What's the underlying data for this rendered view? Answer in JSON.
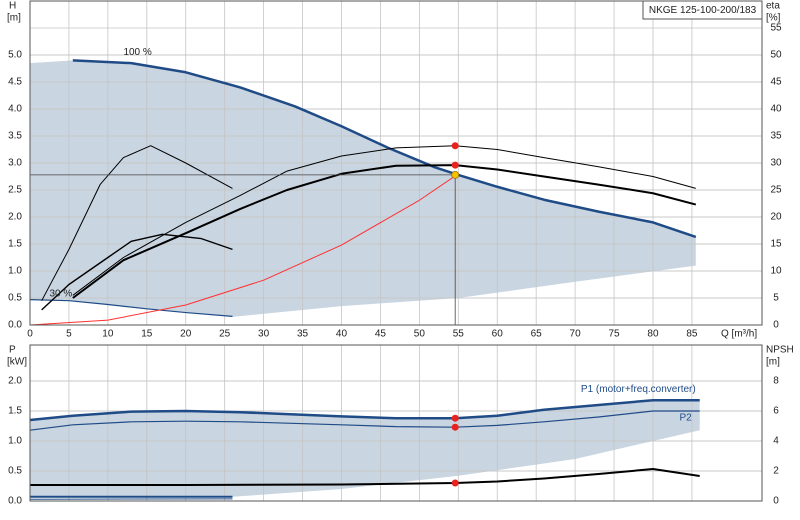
{
  "chart_data": [
    {
      "type": "line",
      "title": "NKGE 125-100-200/183",
      "ylabel": "H",
      "yunit": "[m]",
      "y2label": "eta",
      "y2unit": "[%]",
      "xlabel": "Q [m³/h]",
      "xlim": [
        0,
        94
      ],
      "ylim": [
        0,
        6
      ],
      "y2lim": [
        0,
        60
      ],
      "grid": true,
      "xtick_labels": true,
      "xticks": [
        0,
        5,
        10,
        15,
        20,
        25,
        30,
        35,
        40,
        45,
        50,
        55,
        60,
        65,
        70,
        75,
        80,
        85
      ],
      "yticks": [
        {
          "value": 0,
          "label": "0.0"
        },
        0.5,
        {
          "value": 1,
          "label": "1.0"
        },
        1.5,
        {
          "value": 2,
          "label": "2.0"
        },
        2.5,
        {
          "value": 3,
          "label": "3.0"
        },
        3.5,
        {
          "value": 4,
          "label": "4.0"
        },
        4.5,
        {
          "value": 5,
          "label": "5.0"
        }
      ],
      "y2ticks": [
        0,
        5,
        10,
        15,
        20,
        25,
        30,
        35,
        40,
        45,
        50,
        55
      ],
      "annotations": [
        "100 %",
        "30 %"
      ],
      "series": [
        {
          "kind": "area",
          "color": "#c9d5e1",
          "x": [
            0,
            5.5,
            13,
            20,
            27,
            34,
            40,
            46,
            52,
            55,
            60,
            66,
            73,
            80,
            85.5,
            85.5,
            70,
            55,
            40,
            26,
            20,
            15,
            10,
            5,
            0
          ],
          "values": [
            4.85,
            4.9,
            4.85,
            4.68,
            4.4,
            4.05,
            3.68,
            3.28,
            2.92,
            2.78,
            2.56,
            2.32,
            2.1,
            1.9,
            1.63,
            1.1,
            0.8,
            0.5,
            0.35,
            0.15,
            0.23,
            0.3,
            0.38,
            0.45,
            0.47
          ]
        },
        {
          "color": "#1f4b87",
          "width": 2.5,
          "x": [
            5.5,
            13,
            20,
            27,
            34,
            40,
            46,
            52,
            55,
            60,
            66,
            73,
            80,
            85.5
          ],
          "values": [
            4.9,
            4.85,
            4.68,
            4.4,
            4.05,
            3.68,
            3.28,
            2.92,
            2.78,
            2.56,
            2.32,
            2.1,
            1.9,
            1.63
          ]
        },
        {
          "color": "#1f4b87",
          "width": 1.2,
          "x": [
            0,
            5,
            10,
            15,
            20,
            26
          ],
          "values": [
            0.47,
            0.45,
            0.38,
            0.3,
            0.23,
            0.16
          ]
        },
        {
          "color": "#000000",
          "width": 1,
          "axis": "y2",
          "x": [
            5.5,
            12,
            20,
            27,
            33,
            40,
            47,
            54.6,
            60,
            66,
            73,
            80,
            85.5
          ],
          "values": [
            5.5,
            12.5,
            19,
            24,
            28.5,
            31.3,
            32.8,
            33.2,
            32.5,
            31,
            29.3,
            27.5,
            25.3
          ]
        },
        {
          "color": "#000000",
          "width": 2,
          "axis": "y2",
          "x": [
            5.5,
            12,
            20,
            27,
            33,
            40,
            47,
            54.6,
            60,
            66,
            73,
            80,
            85.5
          ],
          "values": [
            5,
            12,
            17,
            21.5,
            25,
            28,
            29.5,
            29.6,
            28.8,
            27.5,
            26,
            24.4,
            22.3
          ]
        },
        {
          "color": "#000000",
          "width": 1,
          "axis": "y2",
          "x": [
            1.5,
            5,
            9,
            12,
            15.5,
            20,
            26
          ],
          "values": [
            4.5,
            14,
            26,
            31,
            33.2,
            30,
            25.3
          ]
        },
        {
          "color": "#000000",
          "width": 1.4,
          "axis": "y2",
          "x": [
            1.5,
            5,
            10,
            13,
            17,
            22,
            26
          ],
          "values": [
            2.8,
            7.5,
            12.5,
            15.5,
            16.8,
            16,
            14
          ]
        },
        {
          "color": "#ff3030",
          "width": 1,
          "x": [
            0,
            10,
            20,
            30,
            40,
            50,
            54.6
          ],
          "values": [
            0,
            0.09,
            0.37,
            0.83,
            1.48,
            2.31,
            2.76
          ]
        },
        {
          "kind": "marker",
          "color": "#e8231f",
          "axis": "y2",
          "x": [
            54.6,
            54.6
          ],
          "values": [
            33.2,
            29.6
          ]
        },
        {
          "kind": "marker",
          "color": "#f5c400",
          "crosshair": true,
          "x": [
            54.6
          ],
          "values": [
            2.78
          ]
        }
      ]
    },
    {
      "type": "line",
      "ylabel": "P",
      "yunit": "[kW]",
      "y2label": "NPSH",
      "y2unit": "[m]",
      "xlim": [
        0,
        94
      ],
      "ylim": [
        0,
        2.6
      ],
      "y2lim": [
        0,
        10.4
      ],
      "grid": true,
      "xtick_labels": false,
      "xticks": [
        0,
        5,
        10,
        15,
        20,
        25,
        30,
        35,
        40,
        45,
        50,
        55,
        60,
        65,
        70,
        75,
        80,
        85
      ],
      "yticks": [
        {
          "value": 0,
          "label": "0.0"
        },
        0.5,
        {
          "value": 1,
          "label": "1.0"
        },
        1.5,
        {
          "value": 2,
          "label": "2.0"
        }
      ],
      "y2ticks": [
        0,
        2,
        4,
        6,
        8
      ],
      "series": [
        {
          "kind": "area",
          "color": "#c9d5e1",
          "x": [
            0,
            5.5,
            13,
            20,
            27,
            40,
            47,
            54.6,
            60,
            66,
            73,
            80,
            86,
            86,
            70,
            55,
            40,
            26,
            0
          ],
          "values": [
            1.35,
            1.42,
            1.49,
            1.5,
            1.48,
            1.41,
            1.38,
            1.38,
            1.42,
            1.52,
            1.6,
            1.68,
            1.68,
            1.18,
            0.7,
            0.42,
            0.2,
            0.07,
            0.07
          ]
        },
        {
          "name": "P1 (motor+freq.converter)",
          "color": "#1f4b87",
          "width": 2.5,
          "x": [
            0,
            5.5,
            13,
            20,
            27,
            40,
            47,
            54.6,
            60,
            66,
            73,
            80,
            86
          ],
          "values": [
            1.35,
            1.42,
            1.49,
            1.5,
            1.48,
            1.41,
            1.38,
            1.38,
            1.42,
            1.52,
            1.6,
            1.68,
            1.68
          ]
        },
        {
          "name": "P2",
          "color": "#1f4b87",
          "width": 1.2,
          "x": [
            0,
            5.5,
            13,
            20,
            27,
            40,
            47,
            54.6,
            60,
            66,
            73,
            80,
            86
          ],
          "values": [
            1.18,
            1.27,
            1.32,
            1.33,
            1.32,
            1.27,
            1.24,
            1.23,
            1.26,
            1.32,
            1.4,
            1.5,
            1.5
          ]
        },
        {
          "color": "#000000",
          "width": 2,
          "axis": "y2",
          "x": [
            0,
            5.5,
            20,
            40,
            54.6,
            60,
            66,
            73,
            80,
            86
          ],
          "values": [
            1.07,
            1.07,
            1.07,
            1.1,
            1.2,
            1.3,
            1.5,
            1.8,
            2.13,
            1.67
          ]
        },
        {
          "color": "#1f4b87",
          "width": 2,
          "x": [
            0,
            26
          ],
          "values": [
            0.07,
            0.07
          ]
        },
        {
          "color": "#1f4b87",
          "width": 1,
          "x": [
            0,
            26
          ],
          "values": [
            0.03,
            0.035
          ]
        },
        {
          "kind": "marker",
          "color": "#e8231f",
          "x": [
            54.6,
            54.6
          ],
          "values": [
            1.38,
            1.23
          ]
        },
        {
          "kind": "marker",
          "color": "#e8231f",
          "axis": "y2",
          "x": [
            54.6
          ],
          "values": [
            1.2
          ]
        }
      ]
    }
  ]
}
